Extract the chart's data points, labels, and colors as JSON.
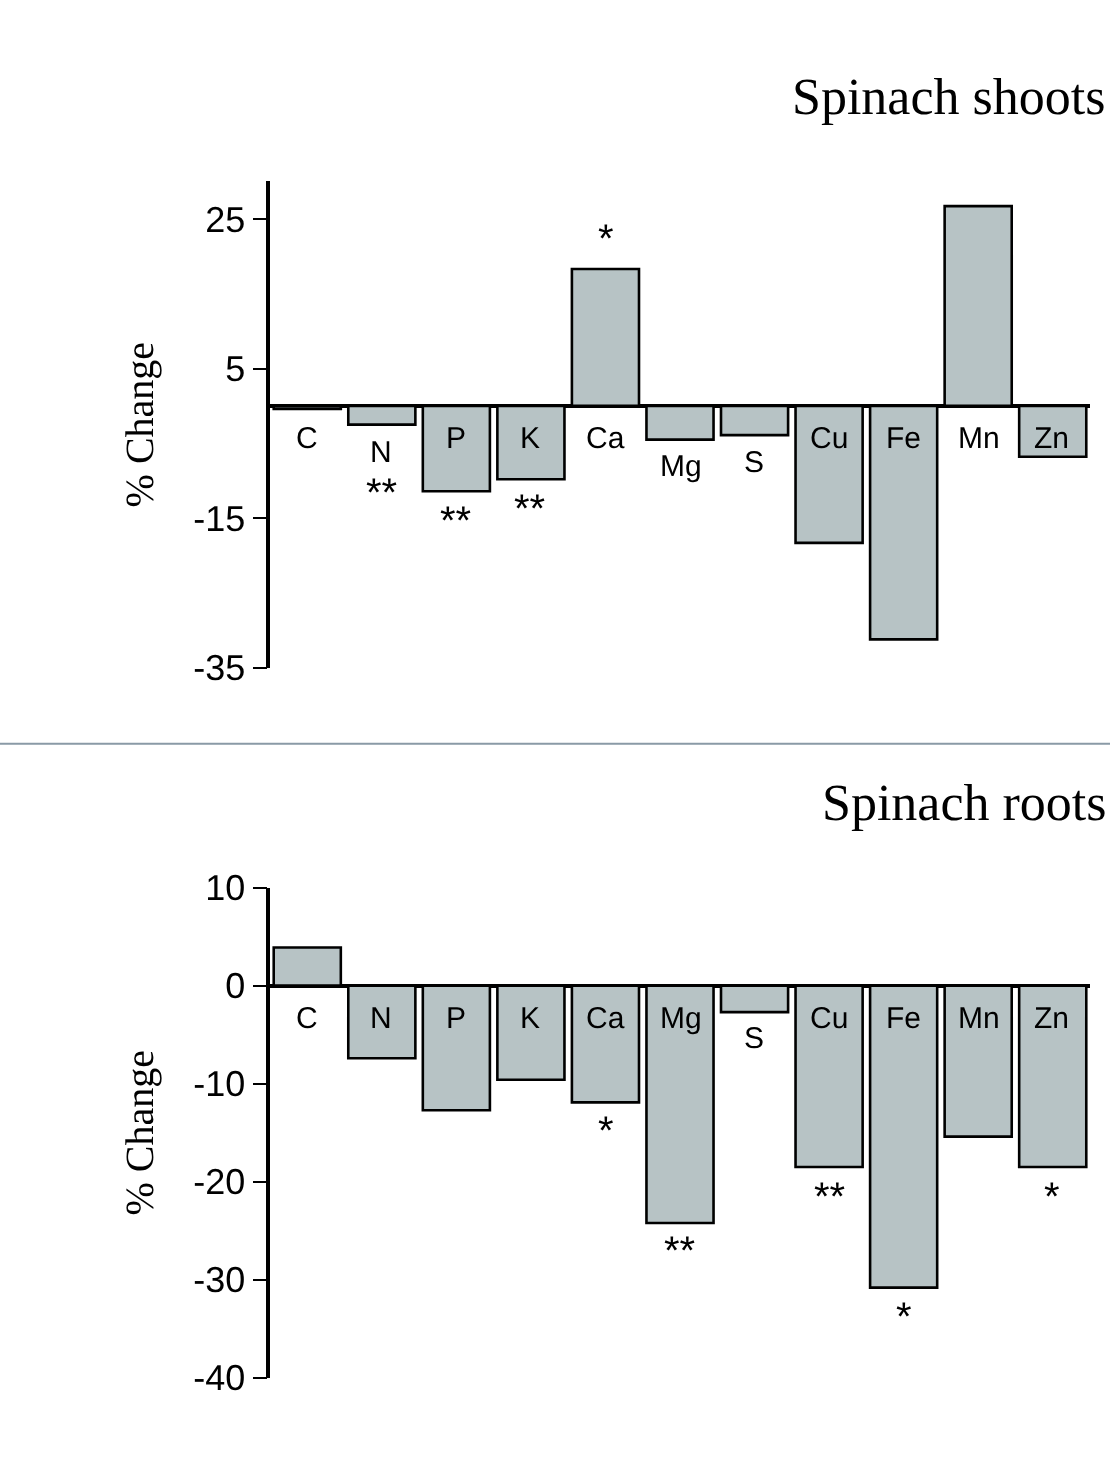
{
  "chart_data": [
    {
      "type": "bar",
      "title": "Spinach shoots",
      "ylabel": "% Change",
      "categories": [
        "C",
        "N",
        "P",
        "K",
        "Ca",
        "Mg",
        "S",
        "Cu",
        "Fe",
        "Mn",
        "Zn"
      ],
      "values": [
        -0.4,
        -2.5,
        -11.4,
        -9.8,
        18.3,
        -4.5,
        -3.9,
        -18.3,
        -31.2,
        26.7,
        -6.8
      ],
      "color": "#b7c3c5",
      "ylim": [
        -35,
        30
      ],
      "yticks": [
        -35,
        -15,
        5,
        25
      ],
      "annotations": [
        {
          "text": "**",
          "x": "N",
          "y": -2.5
        },
        {
          "text": "**",
          "x": "P",
          "y": -11.4
        },
        {
          "text": "**",
          "x": "K",
          "y": -9.8
        },
        {
          "text": "*",
          "x": "Ca",
          "y": 18.3
        }
      ]
    },
    {
      "type": "bar",
      "title": "Spinach roots",
      "ylabel": "% Change",
      "categories": [
        "C",
        "N",
        "P",
        "K",
        "Ca",
        "Mg",
        "S",
        "Cu",
        "Fe",
        "Mn",
        "Zn"
      ],
      "values": [
        3.9,
        -7.4,
        -12.7,
        -9.6,
        -11.9,
        -24.2,
        -2.7,
        -18.5,
        -30.8,
        -15.4,
        -18.5
      ],
      "color": "#b7c3c5",
      "ylim": [
        -40,
        10
      ],
      "yticks": [
        -40,
        -30,
        -20,
        -10,
        0,
        10
      ],
      "annotations": [
        {
          "text": "*",
          "x": "Ca",
          "y": -11.9
        },
        {
          "text": "**",
          "x": "Mg",
          "y": -24.2
        },
        {
          "text": "**",
          "x": "Cu",
          "y": -18.5
        },
        {
          "text": "*",
          "x": "Fe",
          "y": -30.8
        },
        {
          "text": "*",
          "x": "Zn",
          "y": -18.5
        }
      ]
    }
  ]
}
